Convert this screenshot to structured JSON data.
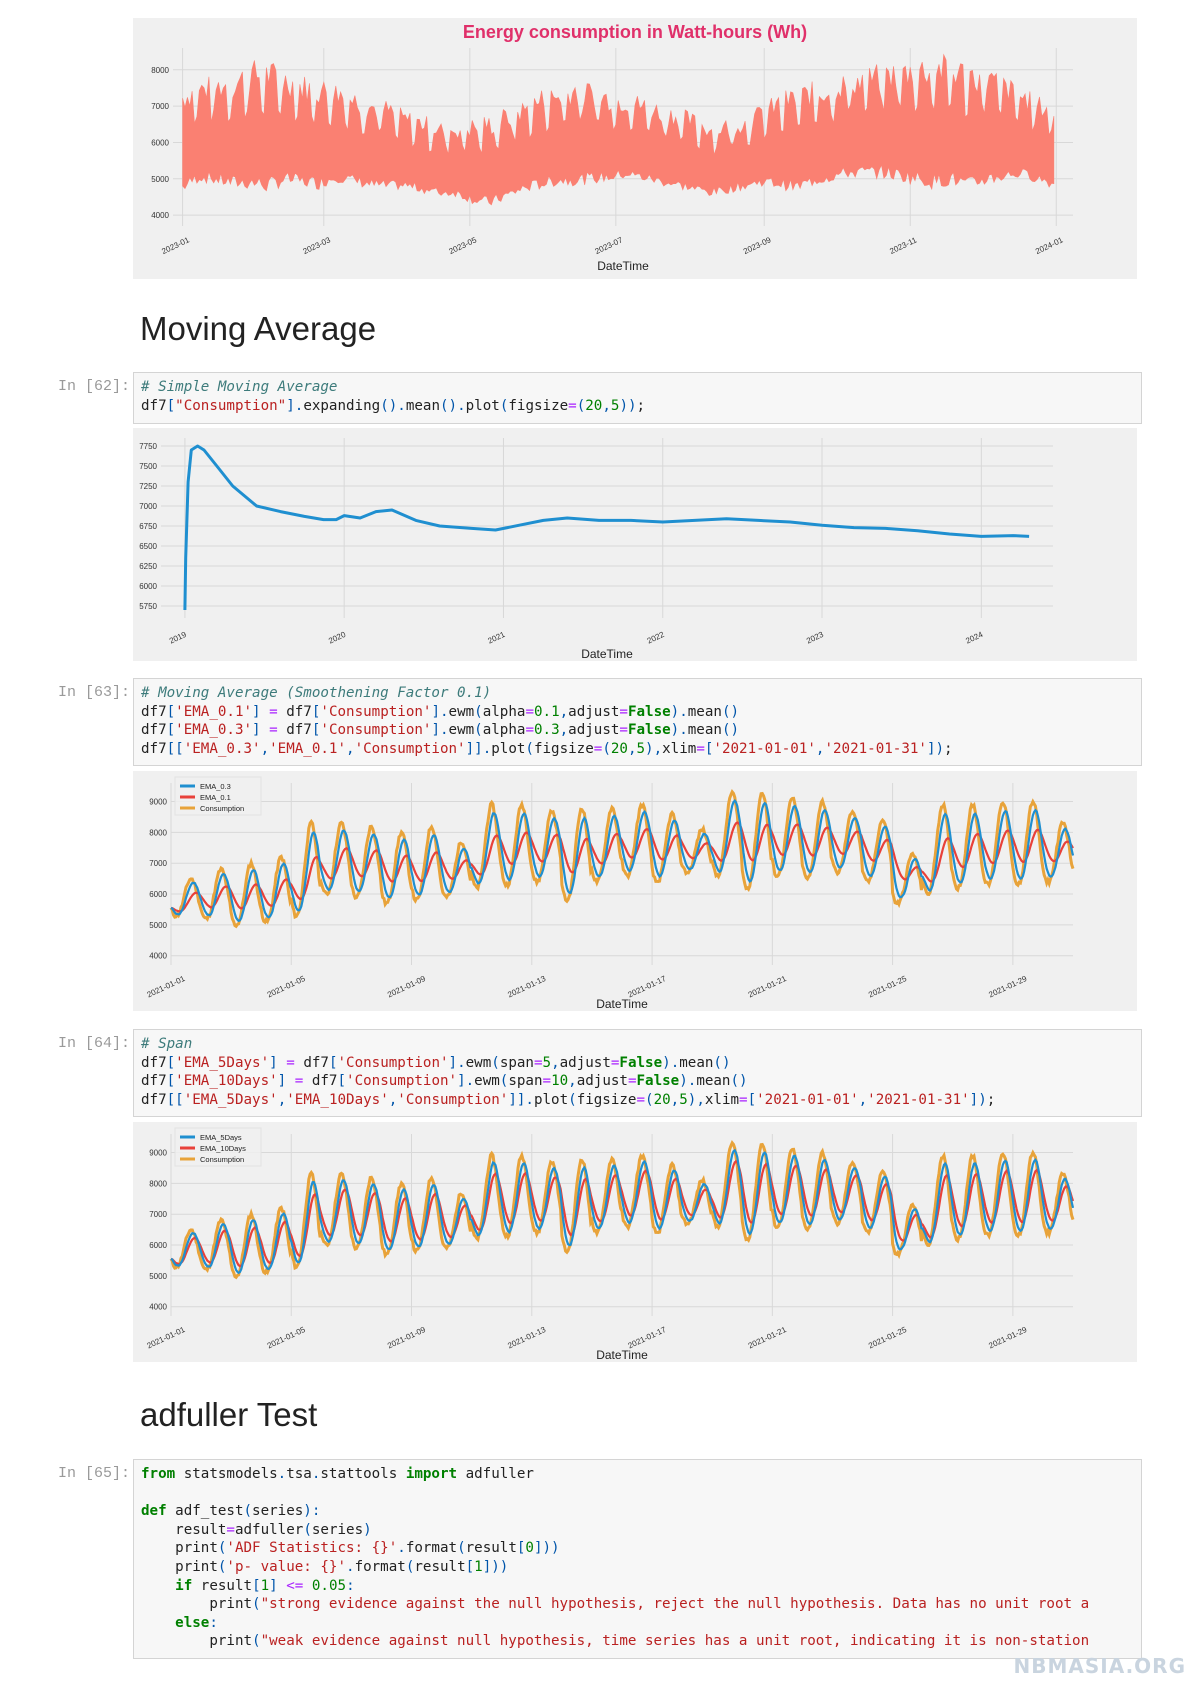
{
  "sections": {
    "moving_average": "Moving Average",
    "adfuller": "adfuller Test"
  },
  "cells": [
    {
      "prompt": "In [62]:",
      "lines": [
        "# Simple Moving Average",
        "df7[\"Consumption\"].expanding().mean().plot(figsize=(20,5));"
      ]
    },
    {
      "prompt": "In [63]:",
      "lines": [
        "# Moving Average (Smoothening Factor 0.1)",
        "df7['EMA_0.1'] = df7['Consumption'].ewm(alpha=0.1,adjust=False).mean()",
        "df7['EMA_0.3'] = df7['Consumption'].ewm(alpha=0.3,adjust=False).mean()",
        "df7[['EMA_0.3','EMA_0.1','Consumption']].plot(figsize=(20,5),xlim=['2021-01-01','2021-01-31']);"
      ]
    },
    {
      "prompt": "In [64]:",
      "lines": [
        "# Span",
        "df7['EMA_5Days'] = df7['Consumption'].ewm(span=5,adjust=False).mean()",
        "df7['EMA_10Days'] = df7['Consumption'].ewm(span=10,adjust=False).mean()",
        "df7[['EMA_5Days','EMA_10Days','Consumption']].plot(figsize=(20,5),xlim=['2021-01-01','2021-01-31']);"
      ]
    },
    {
      "prompt": "In [65]:",
      "lines": [
        "from statsmodels.tsa.stattools import adfuller",
        "",
        "def adf_test(series):",
        "    result=adfuller(series)",
        "    print('ADF Statistics: {}'.format(result[0]))",
        "    print('p- value: {}'.format(result[1]))",
        "    if result[1] <= 0.05:",
        "        print(\"strong evidence against the null hypothesis, reject the null hypothesis. Data has no unit root a",
        "    else:",
        "        print(\"weak evidence against null hypothesis, time series has a unit root, indicating it is non-station"
      ]
    }
  ],
  "watermark": "NBMASIA.ORG",
  "colors": {
    "salmon": "#fa8072",
    "title_red": "#e0306a",
    "blue": "#1f8fd0",
    "red": "#e8413a",
    "gold": "#e8a33a"
  },
  "chart_data": [
    {
      "type": "area",
      "title": "Energy consumption in Watt-hours (Wh)",
      "xlabel": "DateTime",
      "ylabel": "",
      "x_ticks": [
        "2023-01",
        "2023-03",
        "2023-05",
        "2023-07",
        "2023-09",
        "2023-11",
        "2024-01"
      ],
      "y_ticks": [
        4000,
        5000,
        6000,
        7000,
        8000
      ],
      "ylim": [
        3700,
        8600
      ],
      "xlim": [
        "2022-12-28",
        "2024-01-08"
      ],
      "series": [
        {
          "x_start": "2023-01-01",
          "x_end": "2023-12-31",
          "daily_low": [
            4600,
            4900,
            4800,
            4700,
            4700,
            4600,
            4800,
            4750,
            4700,
            4900,
            4800,
            4700,
            4650,
            4700,
            4600,
            4500,
            4500,
            4300,
            4200,
            4400,
            4600,
            4700,
            4800,
            4800,
            4850,
            4900,
            5000,
            4900,
            4800,
            4700,
            4600,
            4500,
            4600,
            4700,
            4800,
            4700,
            4600,
            4800,
            4900,
            5000,
            5000,
            5000,
            4900,
            4800,
            4700,
            4800,
            4600,
            4800,
            4900,
            5000,
            4900,
            4700
          ],
          "daily_high": [
            7600,
            7800,
            7900,
            8000,
            8300,
            8300,
            8100,
            7900,
            7800,
            7700,
            7500,
            7300,
            7200,
            6900,
            6800,
            6600,
            6600,
            6700,
            6800,
            7000,
            7200,
            7500,
            7600,
            7800,
            7700,
            7500,
            7400,
            7300,
            7100,
            7000,
            6800,
            6600,
            6700,
            6800,
            7100,
            7400,
            7600,
            7700,
            7800,
            8000,
            8100,
            8200,
            8300,
            8400,
            8500,
            8400,
            8300,
            8200,
            7900,
            7600,
            7300,
            7200
          ]
        }
      ]
    },
    {
      "type": "line",
      "title": "",
      "xlabel": "DateTime",
      "ylabel": "",
      "x_ticks": [
        "2019",
        "2020",
        "2021",
        "2022",
        "2023",
        "2024"
      ],
      "y_ticks": [
        5750,
        6000,
        6250,
        6500,
        6750,
        7000,
        7250,
        7500,
        7750
      ],
      "ylim": [
        5600,
        7850
      ],
      "xlim": [
        2018.85,
        2024.45
      ],
      "series": [
        {
          "name": "Consumption",
          "x": [
            2019.0,
            2019.005,
            2019.02,
            2019.04,
            2019.08,
            2019.12,
            2019.2,
            2019.3,
            2019.45,
            2019.6,
            2019.75,
            2019.87,
            2019.95,
            2020.0,
            2020.1,
            2020.2,
            2020.3,
            2020.45,
            2020.6,
            2020.8,
            2020.95,
            2021.1,
            2021.25,
            2021.4,
            2021.6,
            2021.8,
            2022.0,
            2022.2,
            2022.4,
            2022.6,
            2022.8,
            2023.0,
            2023.2,
            2023.4,
            2023.6,
            2023.8,
            2024.0,
            2024.2,
            2024.3
          ],
          "values": [
            5700,
            6350,
            7300,
            7700,
            7750,
            7700,
            7500,
            7250,
            7000,
            6930,
            6870,
            6830,
            6830,
            6880,
            6850,
            6930,
            6950,
            6820,
            6750,
            6720,
            6700,
            6760,
            6820,
            6850,
            6820,
            6820,
            6800,
            6820,
            6840,
            6820,
            6800,
            6760,
            6730,
            6720,
            6690,
            6650,
            6620,
            6630,
            6620
          ]
        }
      ]
    },
    {
      "type": "line",
      "title": "",
      "xlabel": "DateTime",
      "ylabel": "",
      "x_ticks": [
        "2021-01-01",
        "2021-01-05",
        "2021-01-09",
        "2021-01-13",
        "2021-01-17",
        "2021-01-21",
        "2021-01-25",
        "2021-01-29"
      ],
      "y_ticks": [
        4000,
        5000,
        6000,
        7000,
        8000,
        9000
      ],
      "ylim": [
        3700,
        9600
      ],
      "xlim": [
        "2021-01-01",
        "2021-01-31"
      ],
      "legend": "top-left",
      "series": [
        {
          "name": "EMA_0.3",
          "color": "#1f8fd0"
        },
        {
          "name": "EMA_0.1",
          "color": "#e8413a"
        },
        {
          "name": "Consumption",
          "color": "#e8a33a"
        }
      ],
      "daily_low": [
        5300,
        5200,
        5000,
        5100,
        5300,
        6000,
        5900,
        5700,
        5800,
        5900,
        6200,
        6300,
        6400,
        5800,
        6400,
        6600,
        6400,
        6700,
        6600,
        6200,
        6600,
        6500,
        6700,
        6400,
        5700,
        6000,
        6200,
        6300,
        6300,
        6400
      ],
      "daily_high": [
        6500,
        6800,
        7000,
        7200,
        8300,
        8300,
        8200,
        8000,
        8200,
        7700,
        8900,
        8900,
        8700,
        8800,
        8800,
        8900,
        8600,
        8100,
        9300,
        9300,
        9100,
        9000,
        8700,
        8400,
        7300,
        8900,
        8900,
        9000,
        9000,
        8300
      ]
    },
    {
      "type": "line",
      "title": "",
      "xlabel": "DateTime",
      "ylabel": "",
      "x_ticks": [
        "2021-01-01",
        "2021-01-05",
        "2021-01-09",
        "2021-01-13",
        "2021-01-17",
        "2021-01-21",
        "2021-01-25",
        "2021-01-29"
      ],
      "y_ticks": [
        4000,
        5000,
        6000,
        7000,
        8000,
        9000
      ],
      "ylim": [
        3700,
        9600
      ],
      "xlim": [
        "2021-01-01",
        "2021-01-31"
      ],
      "legend": "top-left",
      "series": [
        {
          "name": "EMA_5Days",
          "color": "#1f8fd0"
        },
        {
          "name": "EMA_10Days",
          "color": "#e8413a"
        },
        {
          "name": "Consumption",
          "color": "#e8a33a"
        }
      ],
      "daily_low": [
        5300,
        5200,
        5000,
        5100,
        5300,
        6000,
        5900,
        5700,
        5800,
        5900,
        6200,
        6300,
        6400,
        5800,
        6400,
        6600,
        6400,
        6700,
        6600,
        6200,
        6600,
        6500,
        6700,
        6400,
        5700,
        6000,
        6200,
        6300,
        6300,
        6400
      ],
      "daily_high": [
        6500,
        6800,
        7000,
        7200,
        8300,
        8300,
        8200,
        8000,
        8200,
        7700,
        8900,
        8900,
        8700,
        8800,
        8800,
        8900,
        8600,
        8100,
        9300,
        9300,
        9100,
        9000,
        8700,
        8400,
        7300,
        8900,
        8900,
        9000,
        9000,
        8300
      ]
    }
  ]
}
